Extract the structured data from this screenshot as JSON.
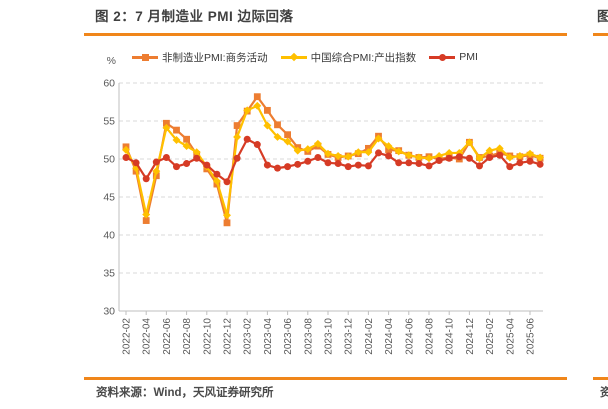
{
  "figure": {
    "title": "图 2：7 月制造业 PMI 边际回落",
    "source": "资料来源：Wind，天风证券研究所",
    "accent_color": "#F0861A"
  },
  "neighbor_figure": {
    "title_fragment": "图",
    "source_fragment": "资"
  },
  "chart_data": {
    "type": "line",
    "unit_label": "%",
    "ylim": [
      30,
      60
    ],
    "yticks": [
      30,
      35,
      40,
      45,
      50,
      55,
      60
    ],
    "grid": "horizontal-dashed",
    "legend_position": "top",
    "axis_color": "#BFBFBF",
    "grid_color": "#D9D9D9",
    "tick_label_color": "#595959",
    "x": [
      "2022-02",
      "2022-03",
      "2022-04",
      "2022-05",
      "2022-06",
      "2022-07",
      "2022-08",
      "2022-09",
      "2022-10",
      "2022-11",
      "2022-12",
      "2023-01",
      "2023-02",
      "2023-03",
      "2023-04",
      "2023-05",
      "2023-06",
      "2023-07",
      "2023-08",
      "2023-09",
      "2023-10",
      "2023-11",
      "2023-12",
      "2024-01",
      "2024-02",
      "2024-03",
      "2024-04",
      "2024-05",
      "2024-06",
      "2024-07",
      "2024-08",
      "2024-09",
      "2024-10",
      "2024-11",
      "2024-12",
      "2025-01",
      "2025-02",
      "2025-03",
      "2025-04",
      "2025-05",
      "2025-06",
      "2025-07"
    ],
    "x_tick_labels": [
      "2022-02",
      "2022-04",
      "2022-06",
      "2022-08",
      "2022-10",
      "2022-12",
      "2023-02",
      "2023-04",
      "2023-06",
      "2023-08",
      "2023-10",
      "2023-12",
      "2024-02",
      "2024-04",
      "2024-06",
      "2024-08",
      "2024-10",
      "2024-12",
      "2025-02",
      "2025-04",
      "2025-06"
    ],
    "series": [
      {
        "name": "非制造业PMI:商务活动",
        "color": "#ED7D31",
        "marker": "square",
        "values": [
          51.6,
          48.4,
          41.9,
          47.8,
          54.7,
          53.8,
          52.6,
          50.6,
          48.7,
          46.7,
          41.6,
          54.4,
          56.3,
          58.2,
          56.4,
          54.5,
          53.2,
          51.5,
          51.0,
          51.7,
          50.6,
          50.2,
          50.4,
          50.7,
          51.4,
          53.0,
          51.2,
          51.1,
          50.5,
          50.2,
          50.3,
          50.0,
          50.2,
          50.0,
          52.2,
          50.2,
          50.4,
          50.8,
          50.4,
          50.3,
          50.5,
          50.1
        ]
      },
      {
        "name": "中国综合PMI:产出指数",
        "color": "#FFC000",
        "marker": "diamond",
        "values": [
          51.2,
          48.8,
          42.7,
          48.4,
          54.1,
          52.5,
          51.7,
          50.9,
          49.0,
          47.1,
          42.6,
          52.9,
          56.4,
          57.0,
          54.4,
          52.9,
          52.3,
          51.1,
          51.3,
          52.0,
          50.7,
          50.4,
          50.3,
          50.9,
          50.9,
          52.7,
          51.7,
          51.0,
          50.5,
          50.2,
          50.1,
          50.4,
          50.8,
          50.8,
          52.2,
          50.1,
          51.1,
          51.4,
          50.2,
          50.4,
          50.7,
          50.2
        ]
      },
      {
        "name": "PMI",
        "color": "#D63B25",
        "marker": "circle",
        "values": [
          50.2,
          49.5,
          47.4,
          49.6,
          50.2,
          49.0,
          49.4,
          50.1,
          49.2,
          48.0,
          47.0,
          50.1,
          52.6,
          51.9,
          49.2,
          48.8,
          49.0,
          49.3,
          49.7,
          50.2,
          49.5,
          49.4,
          49.0,
          49.2,
          49.1,
          50.8,
          50.4,
          49.5,
          49.5,
          49.4,
          49.1,
          49.8,
          50.1,
          50.3,
          50.1,
          49.1,
          50.2,
          50.5,
          49.0,
          49.5,
          49.7,
          49.3
        ]
      }
    ]
  }
}
